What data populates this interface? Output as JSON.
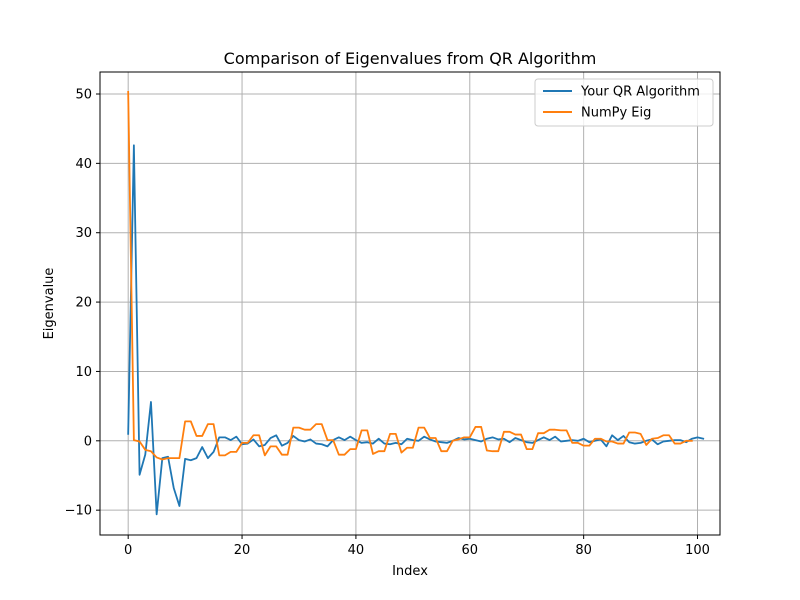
{
  "chart_data": {
    "type": "line",
    "title": "Comparison of Eigenvalues from QR Algorithm",
    "xlabel": "Index",
    "ylabel": "Eigenvalue",
    "xlim": [
      -4.95,
      103.95
    ],
    "ylim": [
      -13.58,
      53.17
    ],
    "xticks": [
      0,
      20,
      40,
      60,
      80,
      100
    ],
    "yticks": [
      -10,
      0,
      10,
      20,
      30,
      40,
      50
    ],
    "xtick_labels": [
      "0",
      "20",
      "40",
      "60",
      "80",
      "100"
    ],
    "ytick_labels": [
      "−10",
      "0",
      "10",
      "20",
      "30",
      "40",
      "50"
    ],
    "grid": true,
    "legend_position": "top-right",
    "series": [
      {
        "name": "Your QR Algorithm",
        "color": "#1f77b4",
        "values": [
          1.0,
          42.6,
          -4.9,
          -2.0,
          5.6,
          -10.6,
          -2.5,
          -2.3,
          -6.8,
          -9.4,
          -2.6,
          -2.8,
          -2.5,
          -0.9,
          -2.5,
          -1.6,
          0.5,
          0.5,
          0.1,
          0.6,
          -0.5,
          -0.4,
          0.2,
          -0.8,
          -0.6,
          0.4,
          0.8,
          -0.7,
          -0.3,
          0.7,
          0.1,
          -0.1,
          0.2,
          -0.4,
          -0.5,
          -0.8,
          0.1,
          0.5,
          0.1,
          0.6,
          0.1,
          -0.3,
          -0.2,
          -0.4,
          0.3,
          -0.4,
          -0.5,
          -0.3,
          -0.5,
          0.3,
          0.1,
          0.0,
          0.6,
          0.2,
          -0.1,
          -0.2,
          -0.3,
          0.0,
          0.4,
          0.2,
          0.3,
          0.1,
          -0.1,
          0.3,
          0.5,
          0.2,
          0.3,
          -0.2,
          0.4,
          0.1,
          -0.2,
          -0.3,
          0.1,
          0.5,
          0.1,
          0.6,
          -0.1,
          0.0,
          0.1,
          0.0,
          0.3,
          -0.2,
          0.0,
          0.2,
          -0.8,
          0.8,
          0.1,
          0.7,
          -0.2,
          -0.4,
          -0.3,
          0.0,
          0.2,
          -0.5,
          -0.1,
          0.0,
          0.1,
          0.1,
          -0.2,
          0.3,
          0.5,
          0.3
        ]
      },
      {
        "name": "NumPy Eig",
        "color": "#ff7f0e",
        "values": [
          50.3,
          0.1,
          -0.1,
          -1.3,
          -1.5,
          -2.4,
          -2.7,
          -2.5,
          -2.5,
          -2.5,
          2.8,
          2.8,
          0.7,
          0.7,
          2.4,
          2.4,
          -2.1,
          -2.1,
          -1.6,
          -1.6,
          -0.3,
          -0.3,
          0.8,
          0.8,
          -2.1,
          -0.8,
          -0.8,
          -2.0,
          -2.0,
          1.9,
          1.9,
          1.6,
          1.6,
          2.4,
          2.4,
          0.1,
          0.1,
          -2.0,
          -2.0,
          -1.2,
          -1.2,
          1.5,
          1.5,
          -1.9,
          -1.5,
          -1.5,
          1.0,
          1.0,
          -1.7,
          -1.0,
          -1.0,
          1.9,
          1.9,
          0.4,
          0.4,
          -1.5,
          -1.5,
          0.0,
          0.2,
          0.5,
          0.5,
          2.0,
          2.0,
          -1.4,
          -1.5,
          -1.5,
          1.3,
          1.3,
          0.9,
          0.9,
          -1.2,
          -1.2,
          1.1,
          1.1,
          1.6,
          1.6,
          1.5,
          1.5,
          -0.3,
          -0.3,
          -0.7,
          -0.7,
          0.3,
          0.3,
          -0.1,
          -0.1,
          -0.4,
          -0.4,
          1.2,
          1.2,
          1.0,
          -0.6,
          0.3,
          0.4,
          0.8,
          0.8,
          -0.4,
          -0.4,
          0.0,
          0.0
        ]
      }
    ]
  }
}
